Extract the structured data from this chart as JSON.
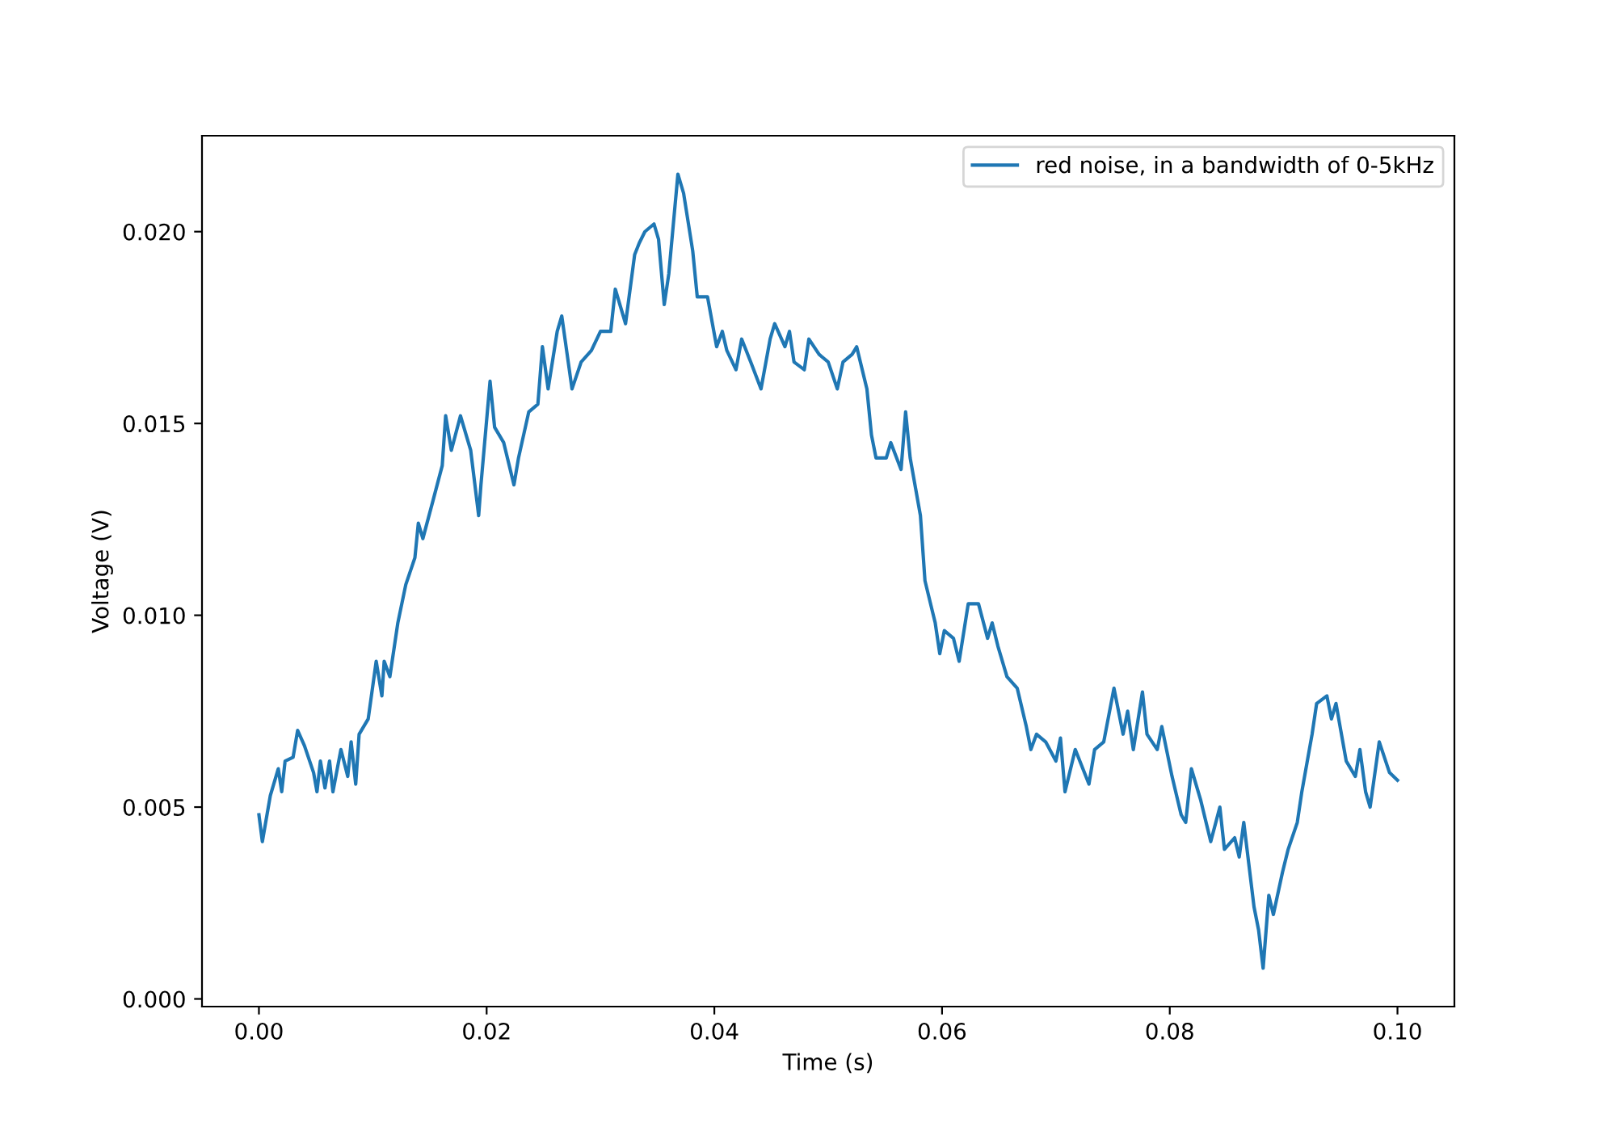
{
  "chart_data": {
    "type": "line",
    "xlabel": "Time (s)",
    "ylabel": "Voltage (V)",
    "legend": "top right",
    "grid": false,
    "xlim": [
      -0.005,
      0.105
    ],
    "ylim": [
      -0.0002,
      0.0225
    ],
    "xticks": [
      {
        "value": 0,
        "label": "0.00"
      },
      {
        "value": 0.02,
        "label": "0.02"
      },
      {
        "value": 0.04,
        "label": "0.04"
      },
      {
        "value": 0.06,
        "label": "0.06"
      },
      {
        "value": 0.08,
        "label": "0.08"
      },
      {
        "value": 0.1,
        "label": "0.10"
      }
    ],
    "yticks": [
      {
        "value": 0,
        "label": "0.000"
      },
      {
        "value": 0.005,
        "label": "0.005"
      },
      {
        "value": 0.01,
        "label": "0.010"
      },
      {
        "value": 0.015,
        "label": "0.015"
      },
      {
        "value": 0.02,
        "label": "0.020"
      }
    ],
    "series": [
      {
        "name": "red noise, in a bandwidth of 0-5kHz",
        "color": "#1f77b4",
        "x": [
          0,
          0.0003,
          0.001,
          0.0017,
          0.002,
          0.0023,
          0.003,
          0.0034,
          0.004,
          0.0048,
          0.0051,
          0.0054,
          0.0058,
          0.0062,
          0.0065,
          0.0072,
          0.0078,
          0.0081,
          0.0085,
          0.0088,
          0.0096,
          0.0103,
          0.0108,
          0.011,
          0.0115,
          0.0122,
          0.0129,
          0.0137,
          0.014,
          0.0144,
          0.0153,
          0.0161,
          0.0164,
          0.0169,
          0.0177,
          0.0186,
          0.0193,
          0.0195,
          0.0203,
          0.0207,
          0.0215,
          0.0224,
          0.0228,
          0.0237,
          0.0245,
          0.0249,
          0.0254,
          0.0262,
          0.0266,
          0.0275,
          0.0283,
          0.0292,
          0.03,
          0.0309,
          0.0313,
          0.0322,
          0.033,
          0.0334,
          0.0339,
          0.0347,
          0.0351,
          0.0356,
          0.036,
          0.0368,
          0.0373,
          0.0381,
          0.0385,
          0.0394,
          0.0402,
          0.0407,
          0.0411,
          0.0419,
          0.0424,
          0.0432,
          0.0441,
          0.0449,
          0.0453,
          0.0462,
          0.0466,
          0.047,
          0.0479,
          0.0483,
          0.0492,
          0.05,
          0.0508,
          0.0513,
          0.0521,
          0.0525,
          0.0534,
          0.0538,
          0.0542,
          0.0551,
          0.0555,
          0.0564,
          0.0568,
          0.0572,
          0.0581,
          0.0585,
          0.0594,
          0.0598,
          0.0602,
          0.061,
          0.0615,
          0.0623,
          0.0632,
          0.064,
          0.0644,
          0.0649,
          0.0657,
          0.0666,
          0.0674,
          0.0678,
          0.0683,
          0.0691,
          0.07,
          0.0704,
          0.0708,
          0.0717,
          0.0729,
          0.0734,
          0.0742,
          0.0751,
          0.0755,
          0.0759,
          0.0763,
          0.0768,
          0.0776,
          0.078,
          0.0789,
          0.0793,
          0.0802,
          0.081,
          0.0814,
          0.0819,
          0.0827,
          0.0836,
          0.0844,
          0.0848,
          0.0857,
          0.0861,
          0.0865,
          0.0874,
          0.0878,
          0.0882,
          0.0887,
          0.0891,
          0.0899,
          0.0904,
          0.0912,
          0.0916,
          0.0925,
          0.0929,
          0.0938,
          0.0942,
          0.0946,
          0.0955,
          0.0963,
          0.0967,
          0.0972,
          0.0976,
          0.0984,
          0.0993,
          0.1
        ],
        "values": [
          0.0048,
          0.0041,
          0.0053,
          0.006,
          0.0054,
          0.0062,
          0.0063,
          0.007,
          0.0066,
          0.0059,
          0.0054,
          0.0062,
          0.0055,
          0.0062,
          0.0054,
          0.0065,
          0.0058,
          0.0067,
          0.0056,
          0.0069,
          0.0073,
          0.0088,
          0.0079,
          0.0088,
          0.0084,
          0.0098,
          0.0108,
          0.0115,
          0.0124,
          0.012,
          0.013,
          0.0139,
          0.0152,
          0.0143,
          0.0152,
          0.0143,
          0.0126,
          0.0134,
          0.0161,
          0.0149,
          0.0145,
          0.0134,
          0.0141,
          0.0153,
          0.0155,
          0.017,
          0.0159,
          0.0174,
          0.0178,
          0.0159,
          0.0166,
          0.0169,
          0.0174,
          0.0174,
          0.0185,
          0.0176,
          0.0194,
          0.0197,
          0.02,
          0.0202,
          0.0198,
          0.0181,
          0.0189,
          0.0215,
          0.021,
          0.0195,
          0.0183,
          0.0183,
          0.017,
          0.0174,
          0.0169,
          0.0164,
          0.0172,
          0.0166,
          0.0159,
          0.0172,
          0.0176,
          0.017,
          0.0174,
          0.0166,
          0.0164,
          0.0172,
          0.0168,
          0.0166,
          0.0159,
          0.0166,
          0.0168,
          0.017,
          0.0159,
          0.0147,
          0.0141,
          0.0141,
          0.0145,
          0.0138,
          0.0153,
          0.0141,
          0.0126,
          0.0109,
          0.0098,
          0.009,
          0.0096,
          0.0094,
          0.0088,
          0.0103,
          0.0103,
          0.0094,
          0.0098,
          0.0092,
          0.0084,
          0.0081,
          0.0071,
          0.0065,
          0.0069,
          0.0067,
          0.0062,
          0.0068,
          0.0054,
          0.0065,
          0.0056,
          0.0065,
          0.0067,
          0.0081,
          0.0075,
          0.0069,
          0.0075,
          0.0065,
          0.008,
          0.0069,
          0.0065,
          0.0071,
          0.0058,
          0.0048,
          0.0046,
          0.006,
          0.0052,
          0.0041,
          0.005,
          0.0039,
          0.0042,
          0.0037,
          0.0046,
          0.0024,
          0.0018,
          0.0008,
          0.0027,
          0.0022,
          0.0033,
          0.0039,
          0.0046,
          0.0054,
          0.0069,
          0.0077,
          0.0079,
          0.0073,
          0.0077,
          0.0062,
          0.0058,
          0.0065,
          0.0054,
          0.005,
          0.0067,
          0.0059,
          0.0057
        ]
      }
    ]
  }
}
